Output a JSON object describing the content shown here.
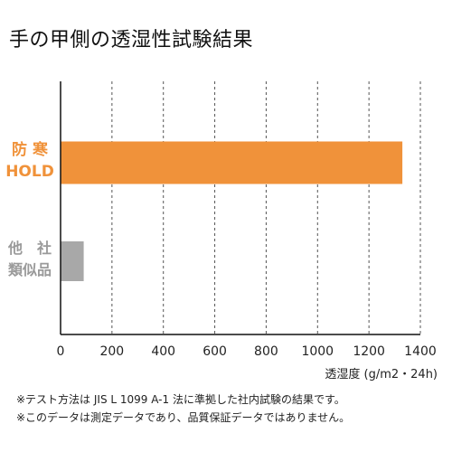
{
  "title": "手の甲側の透湿性試験結果",
  "chart_data": {
    "type": "bar",
    "orientation": "horizontal",
    "categories": [
      {
        "lines": [
          "防 寒",
          "HOLD"
        ],
        "color": "#f0923a"
      },
      {
        "lines": [
          "他　社",
          "類似品"
        ],
        "color": "#a8a8a8"
      }
    ],
    "values": [
      1330,
      90
    ],
    "xlabel": "透湿度 (g/m2・24h)",
    "xlim": [
      0,
      1400
    ],
    "xticks": [
      0,
      200,
      400,
      600,
      800,
      1000,
      1200,
      1400
    ],
    "grid": "vertical dashed"
  },
  "notes": [
    "※テスト方法は JIS L 1099 A-1 法に準拠した社内試験の結果です。",
    "※このデータは測定データであり、品質保証データではありません。"
  ]
}
